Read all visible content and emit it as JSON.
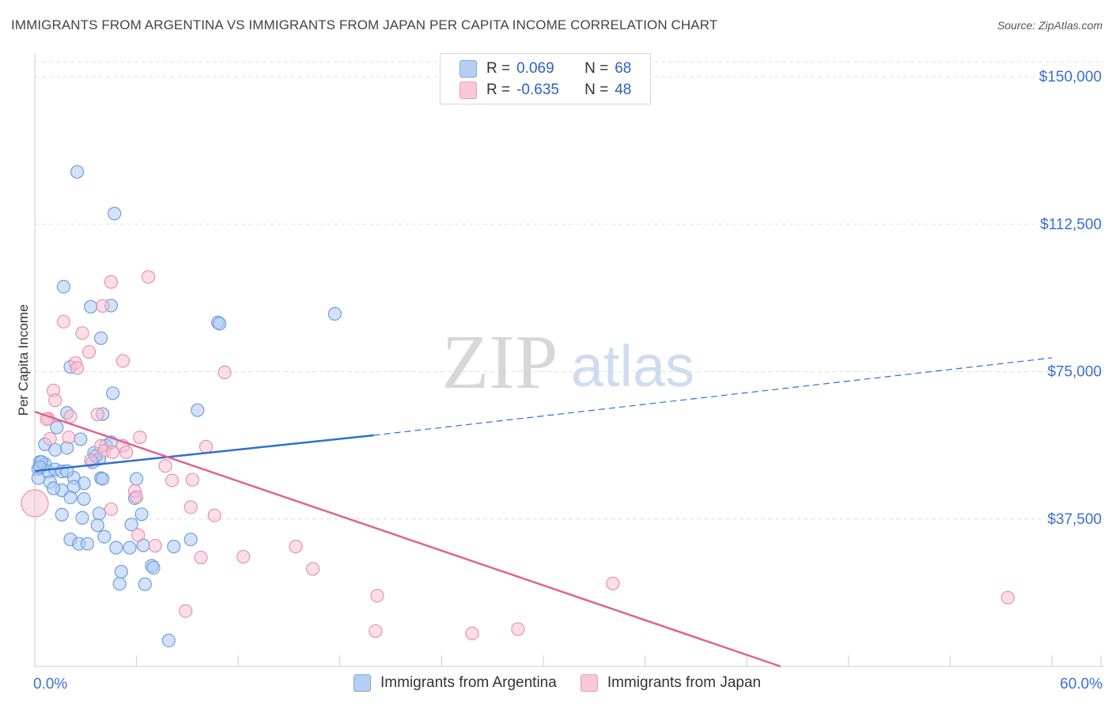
{
  "header": {
    "title": "IMMIGRANTS FROM ARGENTINA VS IMMIGRANTS FROM JAPAN PER CAPITA INCOME CORRELATION CHART",
    "source": "Source: ZipAtlas.com"
  },
  "watermark": {
    "zip": "ZIP",
    "atlas": "atlas"
  },
  "colors": {
    "blue_fill": "#aecbf2",
    "blue_stroke": "#6d9ee0",
    "blue_line": "#2f6fcf",
    "pink_fill": "#f7c0d1",
    "pink_stroke": "#ec8fad",
    "pink_line": "#e0628f",
    "tick_label": "#3b6fd0",
    "grid": "#e0e0e0"
  },
  "legend": {
    "r_label": "R =",
    "n_label": "N =",
    "rows": [
      {
        "r": "0.069",
        "n": "68"
      },
      {
        "r": "-0.635",
        "n": "48"
      }
    ]
  },
  "chart_data": {
    "type": "scatter",
    "title": "IMMIGRANTS FROM ARGENTINA VS IMMIGRANTS FROM JAPAN PER CAPITA INCOME CORRELATION CHART",
    "xlabel": "",
    "ylabel": "Per Capita Income",
    "xlim": [
      0,
      60
    ],
    "ylim": [
      0,
      150000
    ],
    "x_tick_labels": [
      "0.0%",
      "60.0%"
    ],
    "y_ticks": [
      37500,
      75000,
      112500,
      150000
    ],
    "y_tick_labels": [
      "$37,500",
      "$75,000",
      "$112,500",
      "$150,000"
    ],
    "series": [
      {
        "name": "Immigrants from Argentina",
        "color": "#aecbf2",
        "points": [
          [
            2.5,
            125800
          ],
          [
            4.7,
            115200
          ],
          [
            3.3,
            91500
          ],
          [
            4.5,
            91800
          ],
          [
            3.9,
            83500
          ],
          [
            10.8,
            87500
          ],
          [
            10.9,
            87200
          ],
          [
            17.7,
            89700
          ],
          [
            2.1,
            76200
          ],
          [
            4.6,
            69500
          ],
          [
            9.6,
            65200
          ],
          [
            1.3,
            60800
          ],
          [
            1.9,
            64500
          ],
          [
            4.0,
            64200
          ],
          [
            0.6,
            56500
          ],
          [
            1.2,
            55100
          ],
          [
            2.7,
            57800
          ],
          [
            1.9,
            55600
          ],
          [
            3.5,
            54300
          ],
          [
            4.2,
            56200
          ],
          [
            3.8,
            52800
          ],
          [
            0.3,
            52000
          ],
          [
            0.2,
            50200
          ],
          [
            0.6,
            51500
          ],
          [
            0.8,
            49600
          ],
          [
            3.4,
            51900
          ],
          [
            0.2,
            47900
          ],
          [
            1.2,
            50100
          ],
          [
            2.3,
            48000
          ],
          [
            1.6,
            49600
          ],
          [
            2.9,
            46600
          ],
          [
            3.9,
            47900
          ],
          [
            4.0,
            47700
          ],
          [
            6.0,
            47700
          ],
          [
            0.9,
            46900
          ],
          [
            1.6,
            44800
          ],
          [
            2.3,
            45700
          ],
          [
            1.1,
            45300
          ],
          [
            5.9,
            42800
          ],
          [
            2.1,
            43000
          ],
          [
            2.9,
            42600
          ],
          [
            3.8,
            38900
          ],
          [
            6.3,
            38700
          ],
          [
            2.8,
            37800
          ],
          [
            1.6,
            38600
          ],
          [
            5.7,
            36100
          ],
          [
            3.7,
            35900
          ],
          [
            4.1,
            33000
          ],
          [
            2.1,
            32300
          ],
          [
            9.2,
            32300
          ],
          [
            2.6,
            31200
          ],
          [
            3.1,
            31200
          ],
          [
            6.4,
            30800
          ],
          [
            8.2,
            30500
          ],
          [
            4.8,
            30200
          ],
          [
            5.1,
            24100
          ],
          [
            6.9,
            25600
          ],
          [
            7.0,
            25100
          ],
          [
            5.0,
            21000
          ],
          [
            6.5,
            20900
          ],
          [
            7.9,
            6600
          ],
          [
            1.7,
            96600
          ],
          [
            0.4,
            52000
          ],
          [
            0.3,
            50700
          ],
          [
            1.9,
            49700
          ],
          [
            5.6,
            30200
          ],
          [
            4.5,
            57000
          ],
          [
            3.6,
            53500
          ]
        ]
      },
      {
        "name": "Immigrants from Japan",
        "color": "#f7c0d1",
        "points": [
          [
            0.0,
            41500
          ],
          [
            4.5,
            97800
          ],
          [
            6.7,
            99100
          ],
          [
            1.7,
            87700
          ],
          [
            4.0,
            91700
          ],
          [
            2.8,
            84800
          ],
          [
            3.2,
            80000
          ],
          [
            5.2,
            77700
          ],
          [
            2.4,
            77200
          ],
          [
            2.5,
            75900
          ],
          [
            11.2,
            74800
          ],
          [
            1.1,
            70200
          ],
          [
            1.2,
            67700
          ],
          [
            3.7,
            64100
          ],
          [
            2.1,
            63600
          ],
          [
            0.8,
            63000
          ],
          [
            0.9,
            57900
          ],
          [
            2.0,
            58300
          ],
          [
            6.2,
            58300
          ],
          [
            3.9,
            56100
          ],
          [
            5.2,
            56100
          ],
          [
            10.1,
            55900
          ],
          [
            4.1,
            54800
          ],
          [
            4.6,
            54500
          ],
          [
            5.4,
            54500
          ],
          [
            3.3,
            52400
          ],
          [
            7.7,
            51000
          ],
          [
            5.9,
            44600
          ],
          [
            8.1,
            47300
          ],
          [
            6.0,
            43100
          ],
          [
            9.3,
            47500
          ],
          [
            9.2,
            40500
          ],
          [
            4.5,
            40000
          ],
          [
            10.6,
            38400
          ],
          [
            6.1,
            33400
          ],
          [
            7.1,
            30700
          ],
          [
            15.4,
            30500
          ],
          [
            9.8,
            27700
          ],
          [
            12.3,
            27900
          ],
          [
            16.4,
            24800
          ],
          [
            20.2,
            18000
          ],
          [
            34.1,
            21100
          ],
          [
            57.4,
            17500
          ],
          [
            20.1,
            9000
          ],
          [
            8.9,
            14100
          ],
          [
            25.8,
            8400
          ],
          [
            28.5,
            9500
          ],
          [
            0.7,
            62900
          ]
        ]
      }
    ],
    "trend_lines": [
      {
        "name": "Immigrants from Argentina",
        "solid": [
          [
            0,
            49700
          ],
          [
            20,
            58800
          ]
        ],
        "dashed": [
          [
            20,
            58800
          ],
          [
            60,
            78500
          ]
        ]
      },
      {
        "name": "Immigrants from Japan",
        "solid": [
          [
            0,
            64800
          ],
          [
            44,
            0
          ]
        ]
      }
    ]
  }
}
